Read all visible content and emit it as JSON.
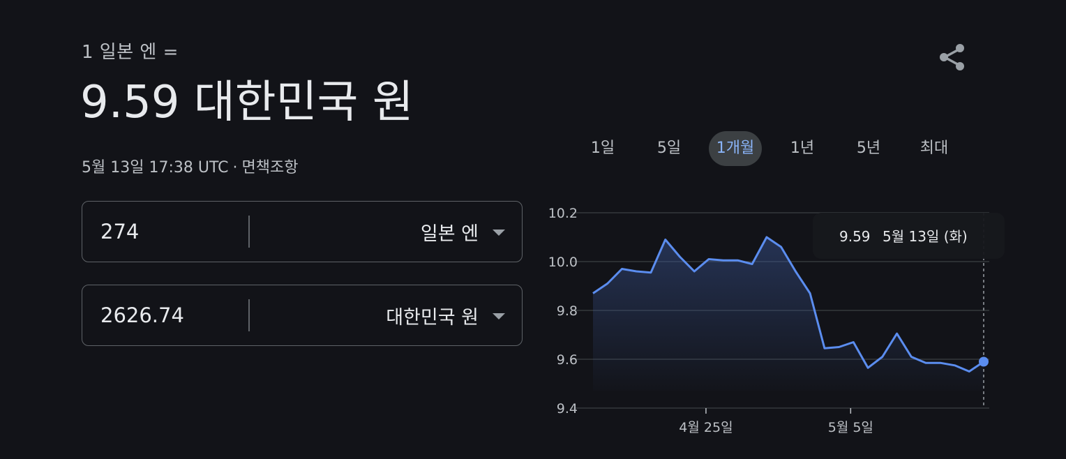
{
  "header": {
    "from_label": "1 일본 엔 =",
    "result": "9.59 대한민국 원",
    "timestamp": "5월 13일 17:38 UTC",
    "separator": "·",
    "disclaimer": "면책조항"
  },
  "converter": {
    "from": {
      "amount": "274",
      "currency": "일본 엔"
    },
    "to": {
      "amount": "2626.74",
      "currency": "대한민국 원"
    }
  },
  "share_icon": "share-icon",
  "ranges": [
    {
      "label": "1일",
      "active": false
    },
    {
      "label": "5일",
      "active": false
    },
    {
      "label": "1개월",
      "active": true
    },
    {
      "label": "1년",
      "active": false
    },
    {
      "label": "5년",
      "active": false
    },
    {
      "label": "최대",
      "active": false
    }
  ],
  "tooltip": {
    "value": "9.59",
    "date": "5월 13일 (화)"
  },
  "colors": {
    "line": "#5b8def",
    "accent": "#8ab4f8",
    "background": "#121318"
  },
  "chart_data": {
    "type": "area",
    "ylim": [
      9.4,
      10.2
    ],
    "yticks": [
      "10.2",
      "10.0",
      "9.8",
      "9.6",
      "9.4"
    ],
    "xticks": [
      "4월 25일",
      "5월 5일"
    ],
    "grid": true,
    "values": [
      9.87,
      9.91,
      9.97,
      9.96,
      9.955,
      10.09,
      10.02,
      9.96,
      10.01,
      10.005,
      10.005,
      9.99,
      10.1,
      10.06,
      9.96,
      9.87,
      9.645,
      9.65,
      9.67,
      9.565,
      9.61,
      9.705,
      9.61,
      9.585,
      9.585,
      9.575,
      9.55,
      9.59
    ]
  }
}
